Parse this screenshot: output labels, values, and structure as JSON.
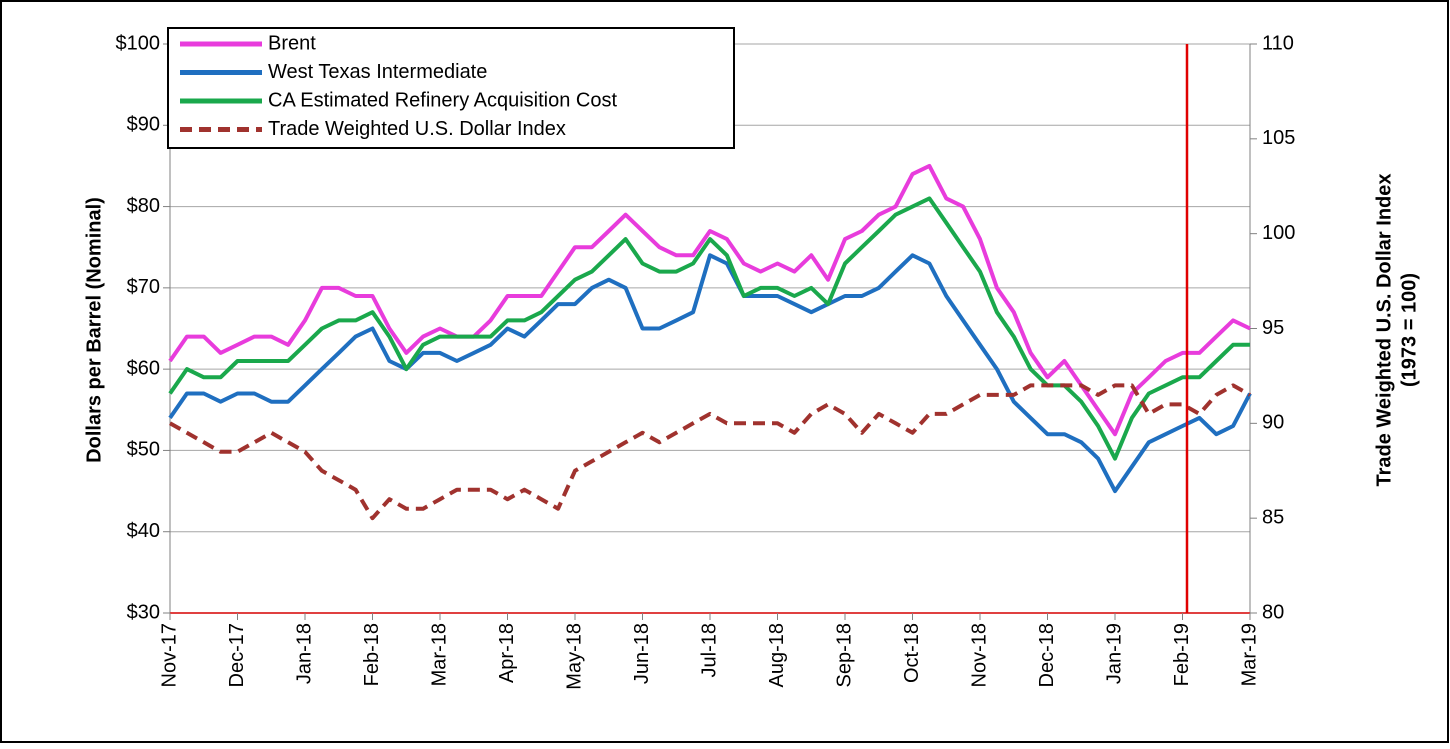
{
  "chart_data": {
    "type": "line",
    "ylabel": "Dollars per Barrel (Nominal)",
    "y2label": [
      "Trade Weighted U.S. Dollar Index",
      "(1973 = 100)"
    ],
    "categories": [
      "Nov-17",
      null,
      null,
      null,
      "Dec-17",
      null,
      null,
      null,
      "Jan-18",
      null,
      null,
      null,
      "Feb-18",
      null,
      null,
      null,
      "Mar-18",
      null,
      null,
      null,
      "Apr-18",
      null,
      null,
      null,
      "May-18",
      null,
      null,
      null,
      "Jun-18",
      null,
      null,
      null,
      "Jul-18",
      null,
      null,
      null,
      "Aug-18",
      null,
      null,
      null,
      "Sep-18",
      null,
      null,
      null,
      "Oct-18",
      null,
      null,
      null,
      "Nov-18",
      null,
      null,
      null,
      "Dec-18",
      null,
      null,
      null,
      "Jan-19",
      null,
      null,
      null,
      "Feb-19",
      null,
      null,
      null,
      "Mar-19"
    ],
    "series": [
      {
        "name": "Brent",
        "color": "#e83cdc",
        "style": "solid",
        "values": [
          61,
          64,
          64,
          62,
          63,
          64,
          64,
          63,
          66,
          70,
          70,
          69,
          69,
          65,
          62,
          64,
          65,
          64,
          64,
          66,
          69,
          69,
          69,
          72,
          75,
          75,
          77,
          79,
          77,
          75,
          74,
          74,
          77,
          76,
          73,
          72,
          73,
          72,
          74,
          71,
          76,
          77,
          79,
          80,
          84,
          85,
          81,
          80,
          76,
          70,
          67,
          62,
          59,
          61,
          58,
          55,
          52,
          57,
          59,
          61,
          62,
          62,
          64,
          66,
          65
        ]
      },
      {
        "name": "West Texas Intermediate",
        "color": "#1f6fc0",
        "style": "solid",
        "values": [
          54,
          57,
          57,
          56,
          57,
          57,
          56,
          56,
          58,
          60,
          62,
          64,
          65,
          61,
          60,
          62,
          62,
          61,
          62,
          63,
          65,
          64,
          66,
          68,
          68,
          70,
          71,
          70,
          65,
          65,
          66,
          67,
          74,
          73,
          69,
          69,
          69,
          68,
          67,
          68,
          69,
          69,
          70,
          72,
          74,
          73,
          69,
          66,
          63,
          60,
          56,
          54,
          52,
          52,
          51,
          49,
          45,
          48,
          51,
          52,
          53,
          54,
          52,
          53,
          57
        ]
      },
      {
        "name": "CA Estimated Refinery Acquisition Cost",
        "color": "#1aa84c",
        "style": "solid",
        "values": [
          57,
          60,
          59,
          59,
          61,
          61,
          61,
          61,
          63,
          65,
          66,
          66,
          67,
          64,
          60,
          63,
          64,
          64,
          64,
          64,
          66,
          66,
          67,
          69,
          71,
          72,
          74,
          76,
          73,
          72,
          72,
          73,
          76,
          74,
          69,
          70,
          70,
          69,
          70,
          68,
          73,
          75,
          77,
          79,
          80,
          81,
          78,
          75,
          72,
          67,
          64,
          60,
          58,
          58,
          56,
          53,
          49,
          54,
          57,
          58,
          59,
          59,
          61,
          63,
          63
        ]
      },
      {
        "name": "Trade Weighted U.S. Dollar Index",
        "color": "#a0322e",
        "style": "dashed",
        "axis": "y2",
        "values": [
          90,
          89.5,
          89,
          88.5,
          88.5,
          89,
          89.5,
          89,
          88.5,
          87.5,
          87,
          86.5,
          85,
          86,
          85.5,
          85.5,
          86,
          86.5,
          86.5,
          86.5,
          86,
          86.5,
          86,
          85.5,
          87.5,
          88,
          88.5,
          89,
          89.5,
          89,
          89.5,
          90,
          90.5,
          90,
          90,
          90,
          90,
          89.5,
          90.5,
          91,
          90.5,
          89.5,
          90.5,
          90,
          89.5,
          90.5,
          90.5,
          91,
          91.5,
          91.5,
          91.5,
          92,
          92,
          92,
          92,
          91.5,
          92,
          92,
          90.5,
          91,
          91,
          90.5,
          91.5,
          92,
          91.5
        ]
      }
    ],
    "ylim": [
      30,
      100
    ],
    "yticks": [
      {
        "value": 30,
        "label": "$30"
      },
      {
        "value": 40,
        "label": "$40"
      },
      {
        "value": 50,
        "label": "$50"
      },
      {
        "value": 60,
        "label": "$60"
      },
      {
        "value": 70,
        "label": "$70"
      },
      {
        "value": 80,
        "label": "$80"
      },
      {
        "value": 90,
        "label": "$90"
      },
      {
        "value": 100,
        "label": "$100"
      }
    ],
    "y2lim": [
      80,
      110
    ],
    "y2ticks": [
      80,
      85,
      90,
      95,
      100,
      105,
      110
    ],
    "grid": true,
    "legend": "top-left"
  }
}
